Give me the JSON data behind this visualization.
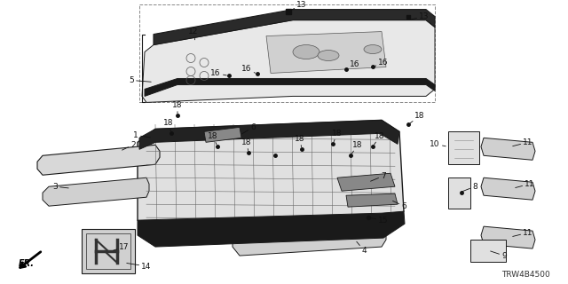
{
  "background_color": "#ffffff",
  "diagram_code": "TRW4B4500",
  "line_color": "#1a1a1a",
  "label_color": "#111111",
  "label_fontsize": 6.5,
  "diagram_code_fontsize": 6.5
}
